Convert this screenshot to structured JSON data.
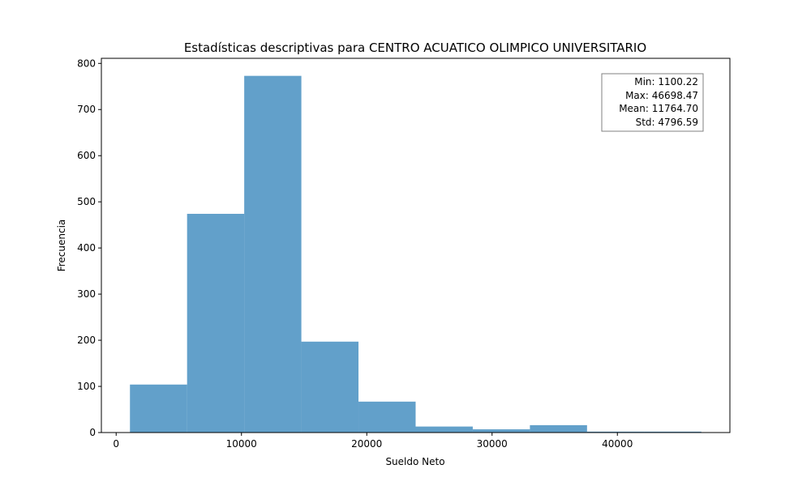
{
  "chart_data": {
    "type": "bar",
    "title": "Estadísticas descriptivas para CENTRO ACUATICO OLIMPICO UNIVERSITARIO",
    "xlabel": "Sueldo Neto",
    "ylabel": "Frecuencia",
    "xlim": [
      -1180,
      48980
    ],
    "ylim": [
      0,
      811
    ],
    "xticks": [
      0,
      10000,
      20000,
      30000,
      40000
    ],
    "xtick_labels": [
      "0",
      "10000",
      "20000",
      "30000",
      "40000"
    ],
    "yticks": [
      0,
      100,
      200,
      300,
      400,
      500,
      600,
      700,
      800
    ],
    "ytick_labels": [
      "0",
      "100",
      "200",
      "300",
      "400",
      "500",
      "600",
      "700",
      "800"
    ],
    "bins": [
      {
        "x0": 1100.22,
        "x1": 5660.04,
        "count": 104
      },
      {
        "x0": 5660.04,
        "x1": 10219.87,
        "count": 474
      },
      {
        "x0": 10219.87,
        "x1": 14779.69,
        "count": 773
      },
      {
        "x0": 14779.69,
        "x1": 19339.52,
        "count": 197
      },
      {
        "x0": 19339.52,
        "x1": 23899.34,
        "count": 67
      },
      {
        "x0": 23899.34,
        "x1": 28459.17,
        "count": 13
      },
      {
        "x0": 28459.17,
        "x1": 33018.99,
        "count": 7
      },
      {
        "x0": 33018.99,
        "x1": 37578.82,
        "count": 16
      },
      {
        "x0": 37578.82,
        "x1": 42138.64,
        "count": 2
      },
      {
        "x0": 42138.64,
        "x1": 46698.47,
        "count": 2
      }
    ],
    "bar_color": "#1f77b4",
    "bar_opacity": 0.7,
    "grid": false,
    "stats_box": {
      "placement": "top-right",
      "lines": [
        "Min: 1100.22",
        "Max: 46698.47",
        "Mean: 11764.70",
        "Std: 4796.59"
      ]
    }
  }
}
